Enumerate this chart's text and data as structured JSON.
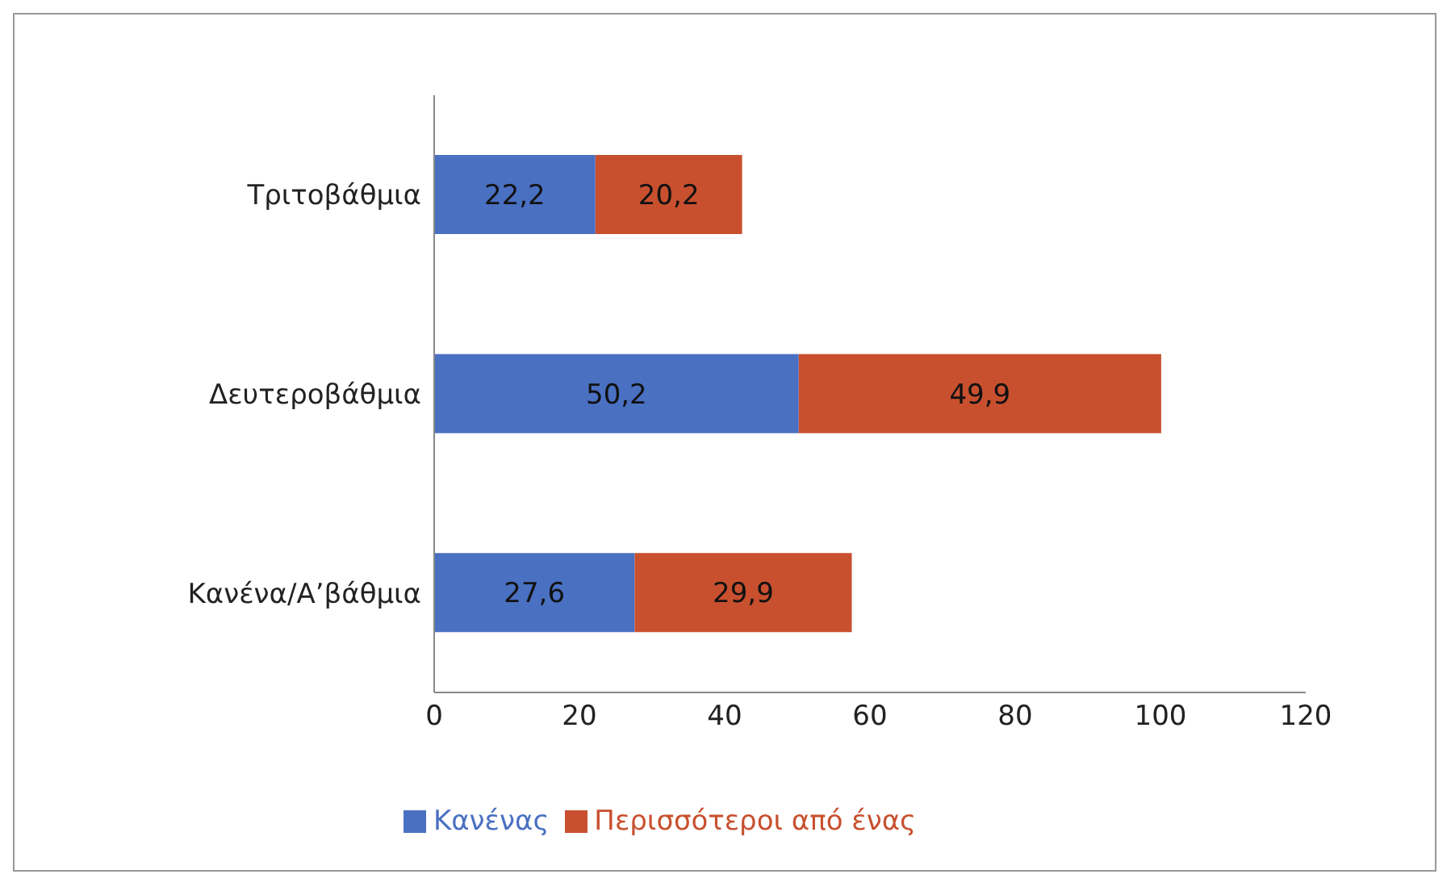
{
  "chart_data": {
    "type": "bar",
    "orientation": "horizontal",
    "stacked": true,
    "categories": [
      "Τριτοβάθμια",
      "Δευτεροβάθμια",
      "Κανένα/Α’βάθμια"
    ],
    "series": [
      {
        "name": "Κανένας",
        "color": "#4a70c2",
        "values": [
          22.2,
          50.2,
          27.6
        ],
        "value_labels": [
          "22,2",
          "50,2",
          "27,6"
        ]
      },
      {
        "name": "Περισσότεροι από ένας",
        "color": "#c8502f",
        "values": [
          20.2,
          49.9,
          29.9
        ],
        "value_labels": [
          "20,2",
          "49,9",
          "29,9"
        ]
      }
    ],
    "xlim": [
      0,
      120
    ],
    "xticks": [
      0,
      20,
      40,
      60,
      80,
      100,
      120
    ],
    "legend": "bottom"
  }
}
